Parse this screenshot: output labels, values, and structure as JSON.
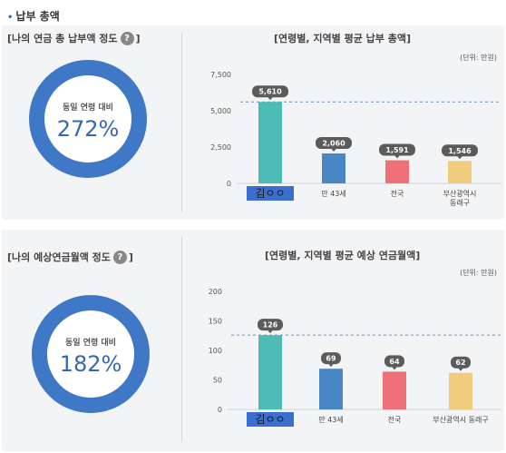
{
  "section_title": "납부 총액",
  "panel1": {
    "left_title_prefix": "[나의 연금 총 납부액 정도",
    "left_title_suffix": "]",
    "donut_caption": "동일 연령 대비",
    "donut_value": "272%",
    "right_title": "[연령별, 지역별 평균 납부 총액]",
    "unit": "(단위: 만원)"
  },
  "panel2": {
    "left_title_prefix": "[나의 예상연금월액 정도",
    "left_title_suffix": "]",
    "donut_caption": "동일 연령 대비",
    "donut_value": "182%",
    "right_title": "[연령별, 지역별 평균 예상 연금월액]",
    "unit": "(단위: 만원)"
  },
  "colors": {
    "accent": "#3f78c6",
    "bar_mine": "#4dbcb6",
    "bar_age": "#4a86c5",
    "bar_nation": "#f07078",
    "bar_region": "#f0cd7c",
    "label_pill": "#5b5b5b",
    "my_label_bg": "#3a6fcf"
  },
  "chart_data": [
    {
      "type": "bar",
      "categories": [
        "김ㅇㅇ",
        "만 43세",
        "전국",
        "부산광역시\n동래구"
      ],
      "values": [
        5610,
        2060,
        1591,
        1546
      ],
      "value_labels": [
        "5,610",
        "2,060",
        "1,591",
        "1,546"
      ],
      "yticks": [
        "0",
        "2,500",
        "5,000",
        "7,500"
      ],
      "ylim": [
        0,
        7500
      ],
      "reference_line": 5610,
      "grid": false
    },
    {
      "type": "bar",
      "categories": [
        "김ㅇㅇ",
        "만 43세",
        "전국",
        "부산광역시 동래구"
      ],
      "values": [
        126,
        69,
        64,
        62
      ],
      "value_labels": [
        "126",
        "69",
        "64",
        "62"
      ],
      "yticks": [
        "0",
        "50",
        "100",
        "150",
        "200"
      ],
      "ylim": [
        0,
        200
      ],
      "reference_line": 126,
      "grid": false
    }
  ]
}
